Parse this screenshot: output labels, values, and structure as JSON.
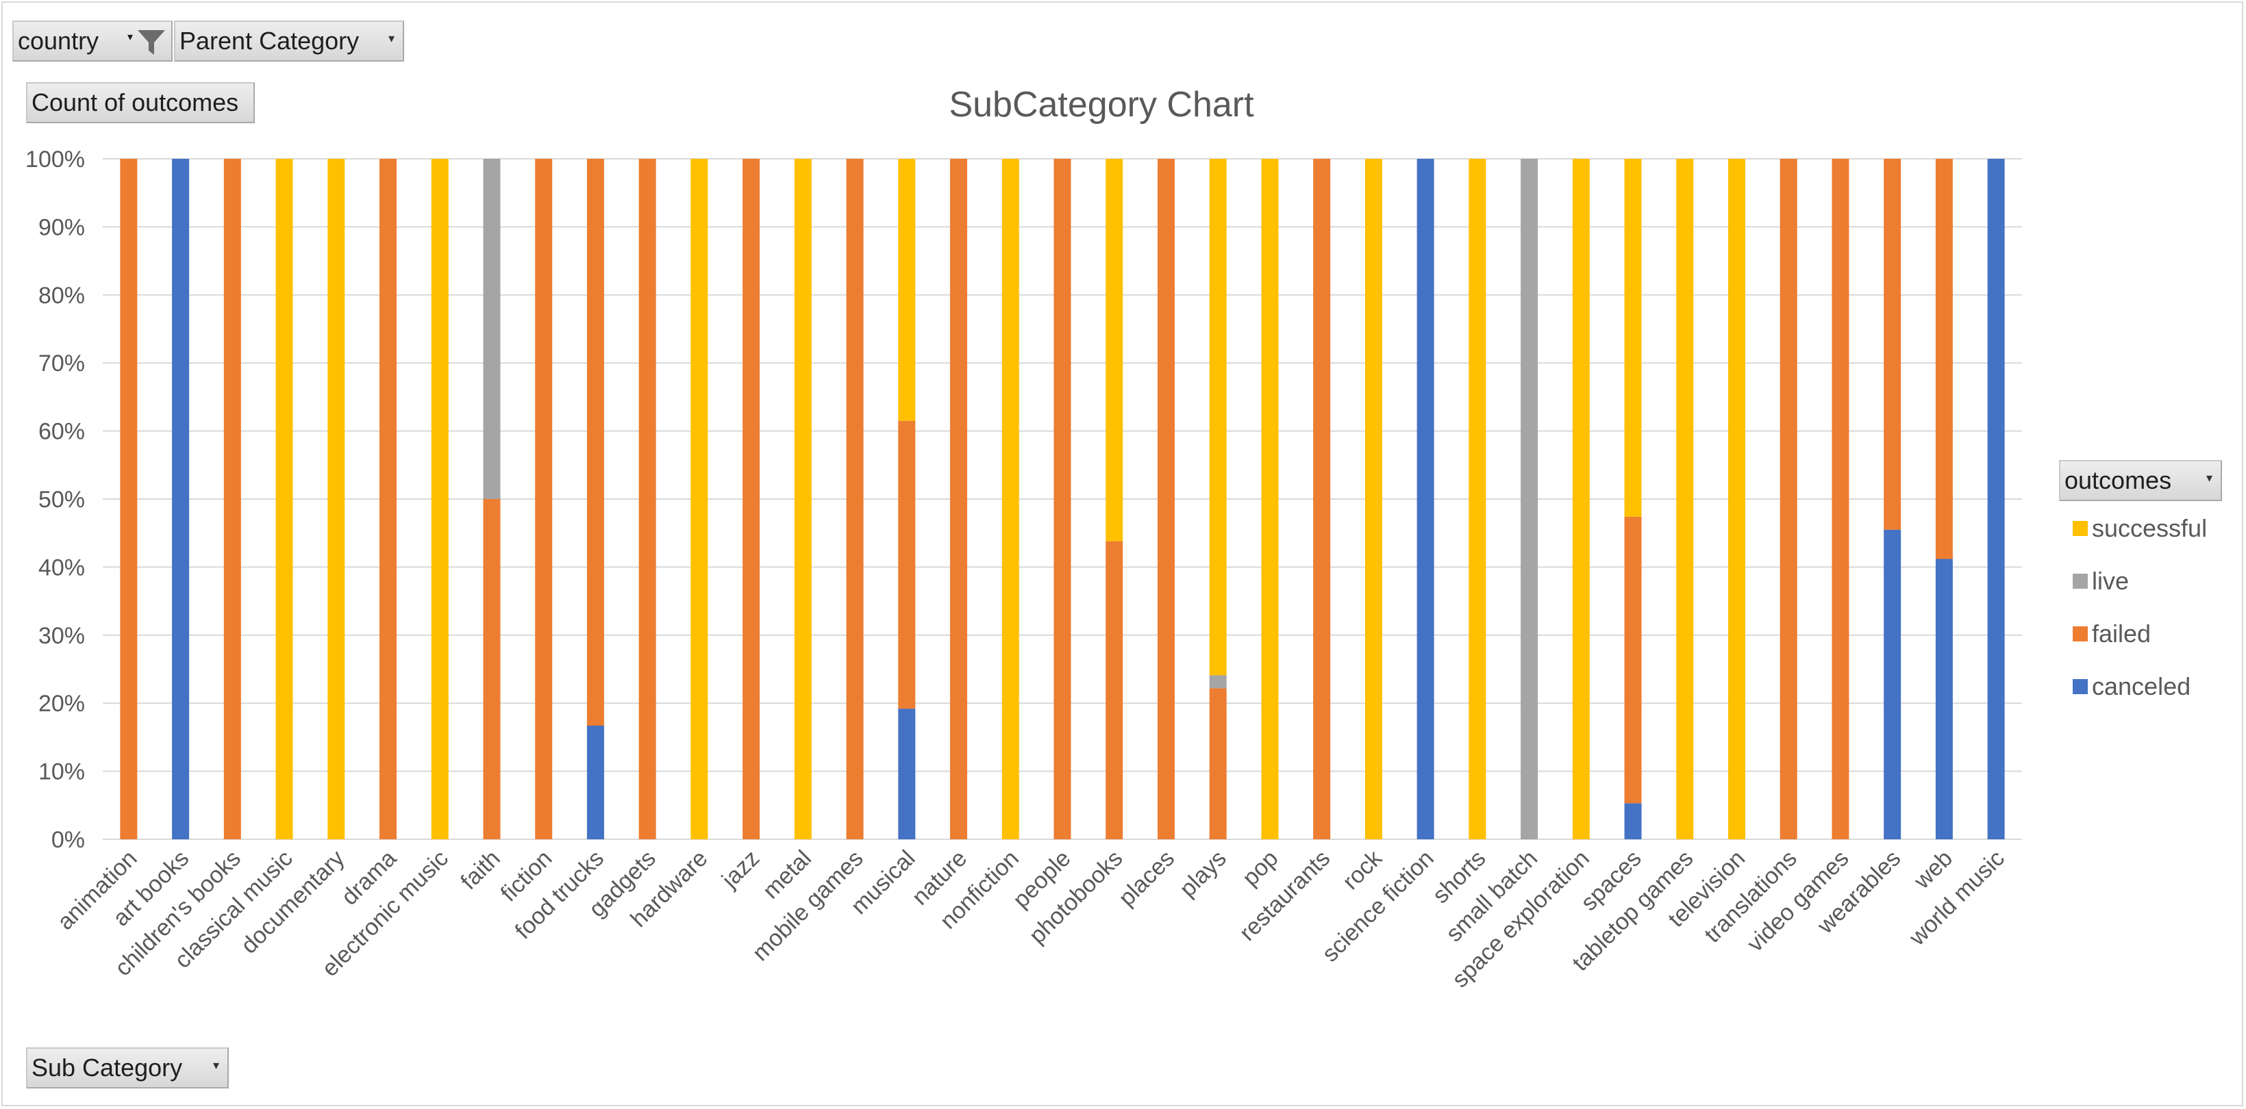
{
  "filters": {
    "country_label": "country",
    "parent_category_label": "Parent Category",
    "values_label": "Count of outcomes",
    "legend_field_label": "outcomes",
    "axis_field_label": "Sub Category",
    "dropdown_glyph": "▾",
    "filter_icon": "funnel-icon"
  },
  "colors": {
    "successful": "#FFC000",
    "live": "#A5A5A5",
    "failed": "#ED7D31",
    "canceled": "#4472C4",
    "grid": "#d9d9d9",
    "text": "#595959"
  },
  "chart_data": {
    "type": "bar",
    "stacked": "percent",
    "title": "SubCategory Chart",
    "ylim": [
      0,
      100
    ],
    "yticks": [
      "0%",
      "10%",
      "20%",
      "30%",
      "40%",
      "50%",
      "60%",
      "70%",
      "80%",
      "90%",
      "100%"
    ],
    "grid": true,
    "legend_position": "right",
    "categories": [
      "animation",
      "art books",
      "children's books",
      "classical music",
      "documentary",
      "drama",
      "electronic music",
      "faith",
      "fiction",
      "food trucks",
      "gadgets",
      "hardware",
      "jazz",
      "metal",
      "mobile games",
      "musical",
      "nature",
      "nonfiction",
      "people",
      "photobooks",
      "places",
      "plays",
      "pop",
      "restaurants",
      "rock",
      "science fiction",
      "shorts",
      "small batch",
      "space exploration",
      "spaces",
      "tabletop games",
      "television",
      "translations",
      "video games",
      "wearables",
      "web",
      "world music"
    ],
    "series": [
      {
        "name": "canceled",
        "values": [
          0,
          100,
          0,
          0,
          0,
          0,
          0,
          0,
          0,
          16.7,
          0,
          0,
          0,
          0,
          0,
          19.2,
          0,
          0,
          0,
          0,
          0,
          0,
          0,
          0,
          0,
          100,
          0,
          0,
          0,
          5.3,
          0,
          0,
          0,
          0,
          45.5,
          41.2,
          100
        ]
      },
      {
        "name": "failed",
        "values": [
          100,
          0,
          100,
          0,
          0,
          100,
          0,
          50,
          100,
          83.3,
          100,
          0,
          100,
          0,
          100,
          42.3,
          100,
          0,
          100,
          43.8,
          100,
          22.2,
          0,
          100,
          0,
          0,
          0,
          0,
          0,
          42.1,
          0,
          0,
          100,
          100,
          54.5,
          58.8,
          0
        ]
      },
      {
        "name": "live",
        "values": [
          0,
          0,
          0,
          0,
          0,
          0,
          0,
          50,
          0,
          0,
          0,
          0,
          0,
          0,
          0,
          0,
          0,
          0,
          0,
          0,
          0,
          1.9,
          0,
          0,
          0,
          0,
          0,
          100,
          0,
          0,
          0,
          0,
          0,
          0,
          0,
          0,
          0
        ]
      },
      {
        "name": "successful",
        "values": [
          0,
          0,
          0,
          100,
          100,
          0,
          100,
          0,
          0,
          0,
          0,
          100,
          0,
          100,
          0,
          38.5,
          0,
          100,
          0,
          56.2,
          0,
          75.9,
          100,
          0,
          100,
          0,
          100,
          0,
          100,
          52.6,
          100,
          100,
          0,
          0,
          0,
          0,
          0
        ]
      }
    ],
    "legend_order": [
      "successful",
      "live",
      "failed",
      "canceled"
    ]
  }
}
